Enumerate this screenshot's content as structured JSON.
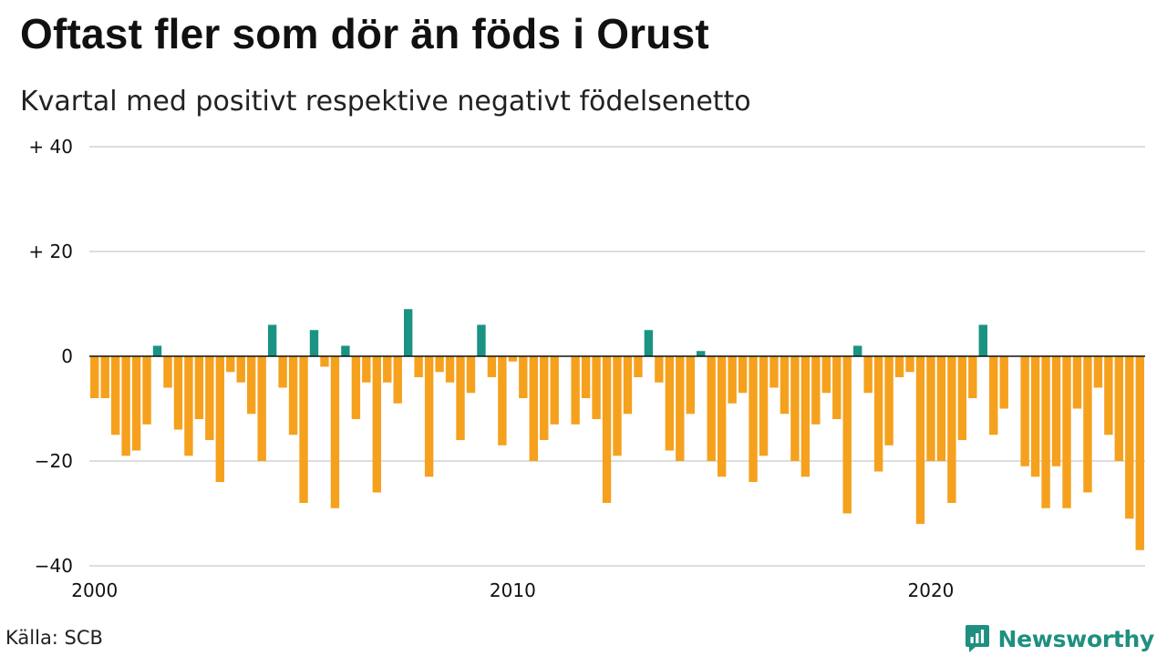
{
  "header": {
    "title": "Oftast fler som dör än föds i Orust",
    "subtitle": "Kvartal med positivt respektive negativt födelsenetto"
  },
  "footer": {
    "source": "Källa: SCB",
    "brand": "Newsworthy",
    "brand_icon": "bar-chart-speech-bubble-icon"
  },
  "colors": {
    "positive": "#1a9384",
    "negative": "#f5a11e",
    "grid": "#dddddd",
    "zero_line": "#111111",
    "brand": "#1f8f80"
  },
  "chart_data": {
    "type": "bar",
    "x_start": "2000 Q1",
    "periods_per_year": 4,
    "x_tick_labels": [
      "2000",
      "2010",
      "2020"
    ],
    "y_tick_labels": [
      "+ 40",
      "+ 20",
      "0",
      "−20",
      "−40"
    ],
    "y_ticks": [
      40,
      20,
      0,
      -20,
      -40
    ],
    "ylim": [
      -40,
      40
    ],
    "grid": true,
    "values": [
      -8,
      -8,
      -15,
      -19,
      -18,
      -13,
      2,
      -6,
      -14,
      -19,
      -12,
      -16,
      -24,
      -3,
      -5,
      -11,
      -20,
      6,
      -6,
      -15,
      -28,
      5,
      -2,
      -29,
      2,
      -12,
      -5,
      -26,
      -5,
      -9,
      9,
      -4,
      -23,
      -3,
      -5,
      -16,
      -7,
      6,
      -4,
      -17,
      -1,
      -8,
      -20,
      -16,
      -13,
      0,
      -13,
      -8,
      -12,
      -28,
      -19,
      -11,
      -4,
      5,
      -5,
      -18,
      -20,
      -11,
      1,
      -20,
      -23,
      -9,
      -7,
      -24,
      -19,
      -6,
      -11,
      -20,
      -23,
      -13,
      -7,
      -12,
      -30,
      2,
      -7,
      -22,
      -17,
      -4,
      -3,
      -32,
      -20,
      -20,
      -28,
      -16,
      -8,
      6,
      -15,
      -10,
      0,
      -21,
      -23,
      -29,
      -21,
      -29,
      -10,
      -26,
      -6,
      -15,
      -20,
      -31,
      -37
    ]
  }
}
